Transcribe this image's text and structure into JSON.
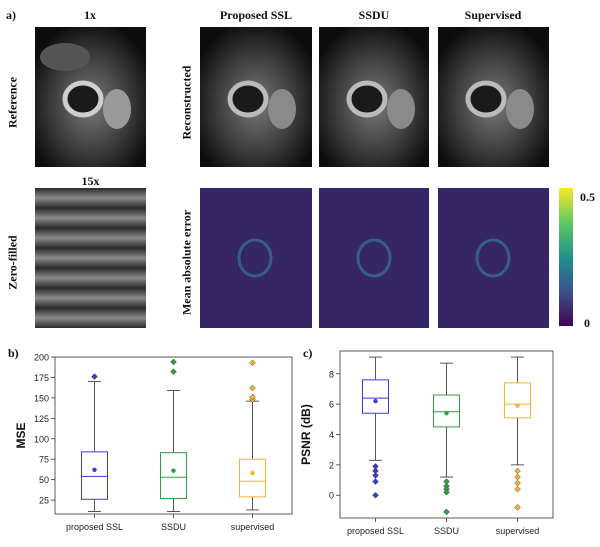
{
  "figure": {
    "panel_labels": {
      "a": "a)",
      "b": "b)",
      "c": "c)"
    },
    "scales": {
      "full": "1x",
      "under": "15x"
    },
    "column_titles": [
      "Proposed SSL",
      "SSDU",
      "Supervised"
    ],
    "row_titles": {
      "reference": "Reference",
      "reconstructed": "Reconstructed",
      "zero_filled": "Zero-filled",
      "mae": "Mean absolute error"
    },
    "colorbar": {
      "max_label": "0.5",
      "min_label": "0"
    },
    "colors": {
      "proposed": "#3b3bcc",
      "ssdu": "#2e9e3e",
      "supervised": "#f2b233",
      "viridis_low": "#440154",
      "viridis_high": "#fde725"
    }
  },
  "chart_data": [
    {
      "type": "box",
      "panel": "b)",
      "ylabel": "MSE",
      "categories": [
        "proposed SSL",
        "SSDU",
        "supervised"
      ],
      "ylim": [
        8,
        200
      ],
      "yticks": [
        "25",
        "50",
        "75",
        "100",
        "125",
        "150",
        "175",
        "200"
      ],
      "series": [
        {
          "name": "proposed SSL",
          "whisker_low": 11,
          "q1": 26,
          "median": 54,
          "q3": 84,
          "whisker_high": 170,
          "mean": 62,
          "outliers": [
            176
          ]
        },
        {
          "name": "SSDU",
          "whisker_low": 11,
          "q1": 27,
          "median": 53,
          "q3": 83,
          "whisker_high": 159,
          "mean": 61,
          "outliers": [
            182,
            194
          ]
        },
        {
          "name": "supervised",
          "whisker_low": 13,
          "q1": 29,
          "median": 48,
          "q3": 75,
          "whisker_high": 146,
          "mean": 58,
          "outliers": [
            148,
            151,
            162,
            193
          ]
        }
      ]
    },
    {
      "type": "box",
      "panel": "c)",
      "ylabel": "PSNR (dB)",
      "categories": [
        "proposed SSL",
        "SSDU",
        "supervised"
      ],
      "ylim": [
        -1.5,
        9.5
      ],
      "yticks": [
        "0",
        "2",
        "4",
        "6",
        "8"
      ],
      "series": [
        {
          "name": "proposed SSL",
          "whisker_low": 2.3,
          "q1": 5.4,
          "median": 6.4,
          "q3": 7.6,
          "whisker_high": 9.1,
          "mean": 6.2,
          "outliers": [
            1.9,
            1.6,
            1.3,
            0.9,
            0.0
          ]
        },
        {
          "name": "SSDU",
          "whisker_low": 1.2,
          "q1": 4.5,
          "median": 5.5,
          "q3": 6.6,
          "whisker_high": 8.7,
          "mean": 5.4,
          "outliers": [
            0.9,
            0.6,
            0.4,
            0.2,
            -1.1
          ]
        },
        {
          "name": "supervised",
          "whisker_low": 2.0,
          "q1": 5.1,
          "median": 6.0,
          "q3": 7.4,
          "whisker_high": 9.1,
          "mean": 5.9,
          "outliers": [
            1.6,
            1.2,
            0.8,
            0.4,
            -0.8
          ]
        }
      ]
    }
  ]
}
